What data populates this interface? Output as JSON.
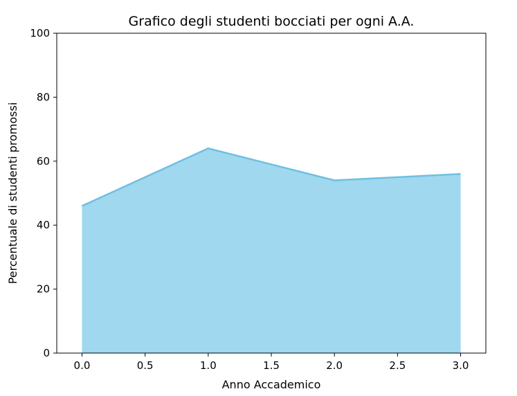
{
  "chart_data": {
    "type": "area",
    "title": "Grafico degli studenti bocciati per ogni A.A.",
    "xlabel": "Anno Accademico",
    "ylabel": "Percentuale di studenti promossi",
    "x": [
      0,
      1,
      2,
      3
    ],
    "series": [
      {
        "values": [
          46,
          64,
          54,
          56
        ],
        "color": "#87ceeb"
      }
    ],
    "xlim": [
      -0.2,
      3.2
    ],
    "ylim": [
      0,
      100
    ],
    "xticks": [
      0.0,
      0.5,
      1.0,
      1.5,
      2.0,
      2.5,
      3.0
    ],
    "xtick_labels": [
      "0.0",
      "0.5",
      "1.0",
      "1.5",
      "2.0",
      "2.5",
      "3.0"
    ],
    "yticks": [
      0,
      20,
      40,
      60,
      80,
      100
    ],
    "ytick_labels": [
      "0",
      "20",
      "40",
      "60",
      "80",
      "100"
    ],
    "grid": false,
    "fill_color": "#87ceeb",
    "fill_opacity": 0.8,
    "line_color": "#6fbfe0"
  }
}
